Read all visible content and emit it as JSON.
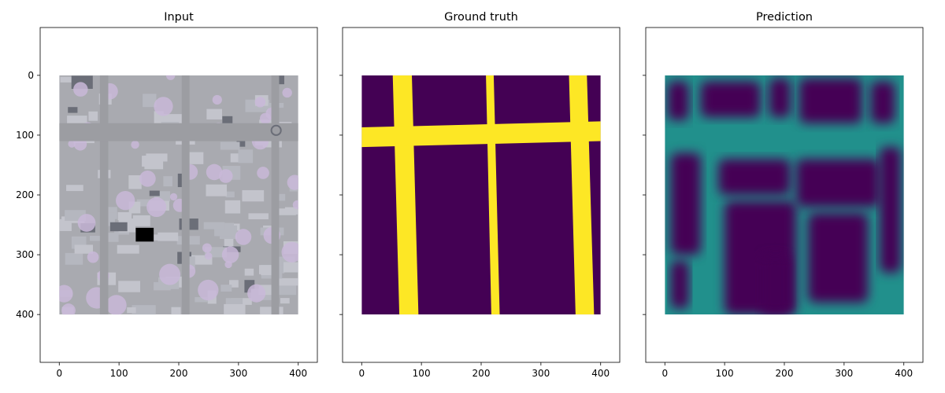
{
  "colors": {
    "viridis_low": "#440154",
    "viridis_mid": "#21908c",
    "viridis_high": "#fde725",
    "input_gray": "#a9aab0",
    "input_road": "#9c9da2",
    "input_roof": "#c3c4cc",
    "input_tree": "#c9b9d8",
    "input_shadow": "#6b6e78",
    "axis": "#000000"
  },
  "chart_data": [
    {
      "type": "heatmap",
      "title": "Input",
      "xlabel": "",
      "ylabel": "",
      "image_extent": [
        0,
        400,
        400,
        0
      ],
      "xlim": [
        -32,
        432
      ],
      "ylim": [
        480,
        -80
      ],
      "xticks": [
        0,
        100,
        200,
        300,
        400
      ],
      "yticks": [
        0,
        100,
        200,
        300,
        400
      ],
      "show_yticklabels": true,
      "content": "aerial",
      "roads": [
        {
          "orientation": "vertical",
          "x": [
            [
              68,
              68
            ],
            [
              82,
              82
            ]
          ],
          "y": [
            0,
            400
          ]
        },
        {
          "orientation": "vertical",
          "x": [
            [
              205,
              205
            ],
            [
              218,
              218
            ]
          ],
          "y": [
            0,
            400
          ]
        },
        {
          "orientation": "vertical",
          "x": [
            [
              355,
              355
            ],
            [
              368,
              368
            ]
          ],
          "y": [
            0,
            400
          ]
        },
        {
          "orientation": "horizontal",
          "x": [
            0,
            400
          ],
          "y": [
            [
              80,
              80
            ],
            [
              110,
              110
            ]
          ]
        }
      ]
    },
    {
      "type": "heatmap",
      "title": "Ground truth",
      "xlabel": "",
      "ylabel": "",
      "image_extent": [
        0,
        400,
        400,
        0
      ],
      "xlim": [
        -32,
        432
      ],
      "ylim": [
        480,
        -80
      ],
      "xticks": [
        0,
        100,
        200,
        300,
        400
      ],
      "yticks": [
        0,
        100,
        200,
        300,
        400
      ],
      "show_yticklabels": false,
      "content": "mask",
      "background_value": 0,
      "road_value": 1,
      "roads": [
        {
          "orientation": "vertical",
          "x_top": [
            52,
            84
          ],
          "x_bottom": [
            63,
            95
          ]
        },
        {
          "orientation": "vertical",
          "x_top": [
            208,
            221
          ],
          "x_bottom": [
            217,
            231
          ]
        },
        {
          "orientation": "vertical",
          "x_top": [
            347,
            377
          ],
          "x_bottom": [
            358,
            389
          ]
        },
        {
          "orientation": "horizontal",
          "y_left": [
            87,
            120
          ],
          "y_right": [
            77,
            110
          ]
        }
      ]
    },
    {
      "type": "heatmap",
      "title": "Prediction",
      "xlabel": "",
      "ylabel": "",
      "image_extent": [
        0,
        400,
        400,
        0
      ],
      "xlim": [
        -32,
        432
      ],
      "ylim": [
        480,
        -80
      ],
      "xticks": [
        0,
        100,
        200,
        300,
        400
      ],
      "yticks": [
        0,
        100,
        200,
        300,
        400
      ],
      "show_yticklabels": false,
      "content": "prediction",
      "road_value": 0.5,
      "background_value": 0,
      "regions": [
        {
          "x": [
            0,
            400
          ],
          "y": [
            0,
            400
          ],
          "value": 0.5
        },
        {
          "x": [
            5,
            40
          ],
          "y": [
            10,
            75
          ],
          "value": 0
        },
        {
          "x": [
            60,
            160
          ],
          "y": [
            10,
            70
          ],
          "value": 0
        },
        {
          "x": [
            175,
            210
          ],
          "y": [
            5,
            70
          ],
          "value": 0
        },
        {
          "x": [
            225,
            330
          ],
          "y": [
            5,
            80
          ],
          "value": 0
        },
        {
          "x": [
            345,
            385
          ],
          "y": [
            10,
            80
          ],
          "value": 0
        },
        {
          "x": [
            10,
            60
          ],
          "y": [
            130,
            300
          ],
          "value": 0
        },
        {
          "x": [
            90,
            210
          ],
          "y": [
            140,
            200
          ],
          "value": 0
        },
        {
          "x": [
            100,
            220
          ],
          "y": [
            210,
            400
          ],
          "value": 0
        },
        {
          "x": [
            220,
            360
          ],
          "y": [
            140,
            220
          ],
          "value": 0
        },
        {
          "x": [
            240,
            340
          ],
          "y": [
            230,
            380
          ],
          "value": 0
        },
        {
          "x": [
            360,
            395
          ],
          "y": [
            120,
            330
          ],
          "value": 0
        },
        {
          "x": [
            10,
            40
          ],
          "y": [
            310,
            390
          ],
          "value": 0
        },
        {
          "x": [
            160,
            210
          ],
          "y": [
            300,
            400
          ],
          "value": 0
        }
      ]
    }
  ]
}
